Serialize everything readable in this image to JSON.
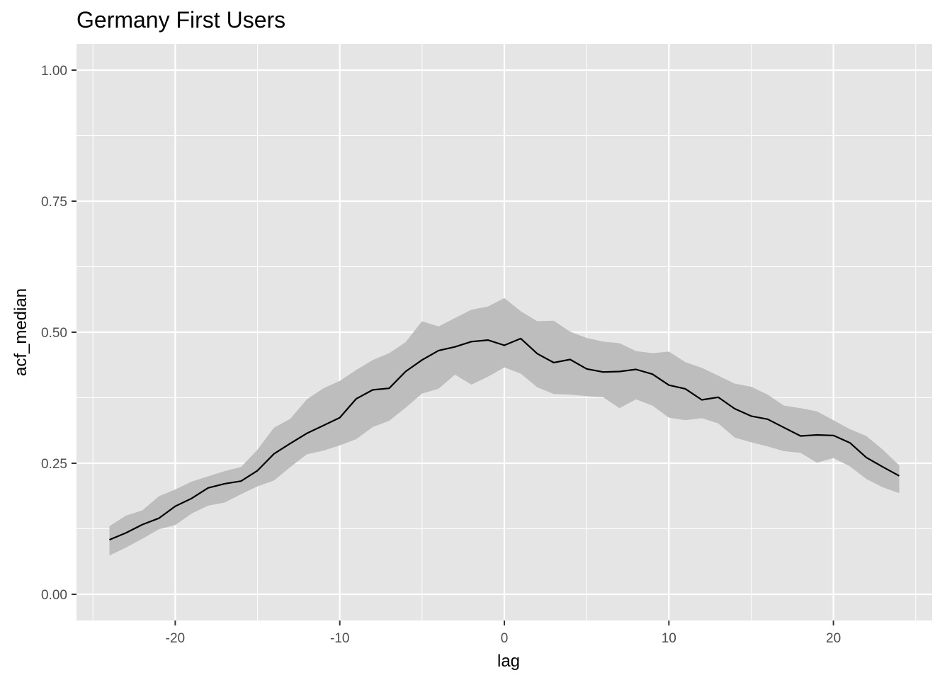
{
  "chart_data": {
    "type": "line",
    "title": "Germany First Users",
    "xlabel": "lag",
    "ylabel": "acf_median",
    "xlim": [
      -26,
      26
    ],
    "ylim": [
      -0.05,
      1.05
    ],
    "x_ticks": [
      -20,
      -10,
      0,
      10,
      20
    ],
    "x_tick_labels": [
      "-20",
      "-10",
      "0",
      "10",
      "20"
    ],
    "y_ticks": [
      0.0,
      0.25,
      0.5,
      0.75,
      1.0
    ],
    "y_tick_labels": [
      "0.00",
      "0.25",
      "0.50",
      "0.75",
      "1.00"
    ],
    "grid": true,
    "x": [
      -24,
      -23,
      -22,
      -21,
      -20,
      -19,
      -18,
      -17,
      -16,
      -15,
      -14,
      -13,
      -12,
      -11,
      -10,
      -9,
      -8,
      -7,
      -6,
      -5,
      -4,
      -3,
      -2,
      -1,
      0,
      1,
      2,
      3,
      4,
      5,
      6,
      7,
      8,
      9,
      10,
      11,
      12,
      13,
      14,
      15,
      16,
      17,
      18,
      19,
      20,
      21,
      22,
      23,
      24
    ],
    "series": [
      {
        "values": [
          0.104,
          0.117,
          0.133,
          0.145,
          0.168,
          0.183,
          0.203,
          0.211,
          0.216,
          0.236,
          0.268,
          0.288,
          0.307,
          0.322,
          0.337,
          0.373,
          0.39,
          0.393,
          0.425,
          0.447,
          0.465,
          0.472,
          0.482,
          0.485,
          0.475,
          0.488,
          0.459,
          0.442,
          0.448,
          0.43,
          0.424,
          0.425,
          0.429,
          0.42,
          0.399,
          0.392,
          0.371,
          0.376,
          0.354,
          0.34,
          0.334,
          0.318,
          0.302,
          0.304,
          0.303,
          0.289,
          0.261,
          0.243,
          0.226
        ],
        "lower": [
          0.074,
          0.089,
          0.106,
          0.124,
          0.132,
          0.154,
          0.169,
          0.175,
          0.191,
          0.206,
          0.217,
          0.243,
          0.267,
          0.274,
          0.284,
          0.296,
          0.319,
          0.331,
          0.356,
          0.383,
          0.392,
          0.419,
          0.4,
          0.415,
          0.433,
          0.421,
          0.395,
          0.382,
          0.381,
          0.378,
          0.376,
          0.355,
          0.372,
          0.36,
          0.337,
          0.332,
          0.336,
          0.326,
          0.299,
          0.29,
          0.282,
          0.273,
          0.27,
          0.251,
          0.26,
          0.244,
          0.22,
          0.204,
          0.193
        ],
        "upper": [
          0.13,
          0.15,
          0.16,
          0.187,
          0.2,
          0.215,
          0.225,
          0.235,
          0.243,
          0.276,
          0.318,
          0.335,
          0.372,
          0.393,
          0.407,
          0.428,
          0.447,
          0.46,
          0.481,
          0.521,
          0.511,
          0.527,
          0.543,
          0.549,
          0.565,
          0.54,
          0.521,
          0.522,
          0.501,
          0.489,
          0.482,
          0.479,
          0.464,
          0.46,
          0.463,
          0.443,
          0.432,
          0.417,
          0.402,
          0.396,
          0.381,
          0.36,
          0.355,
          0.349,
          0.332,
          0.315,
          0.302,
          0.276,
          0.246
        ]
      }
    ],
    "colors": {
      "panel": "#e5e5e5",
      "grid_major": "#ffffff",
      "ribbon": "#bdbdbd",
      "line": "#000000",
      "tick_text": "#4d4d4d",
      "tick_mark": "#333333"
    }
  }
}
